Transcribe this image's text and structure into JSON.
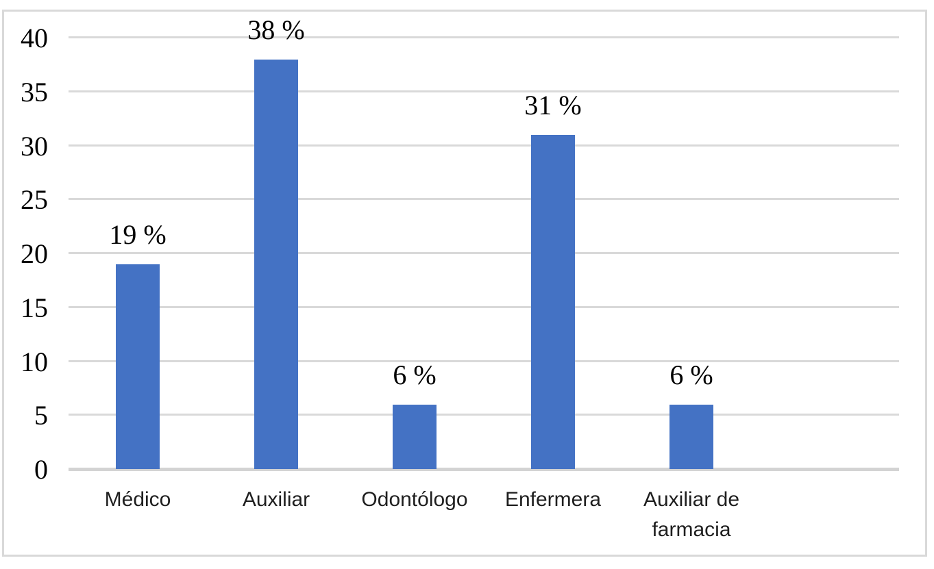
{
  "chart_data": {
    "type": "bar",
    "title": "",
    "xlabel": "",
    "ylabel": "",
    "categories": [
      "Médico",
      "Auxiliar",
      "Odontólogo",
      "Enfermera",
      "Auxiliar de farmacia"
    ],
    "values": [
      19,
      38,
      6,
      31,
      6
    ],
    "data_labels": [
      "19 %",
      "38 %",
      "6 %",
      "31 %",
      "6 %"
    ],
    "y_ticks": [
      0,
      5,
      10,
      15,
      20,
      25,
      30,
      35,
      40
    ],
    "y_tick_labels": [
      "0",
      "5",
      "10",
      "15",
      "20",
      "25",
      "30",
      "35",
      "40"
    ],
    "ylim": [
      0,
      40
    ],
    "grid": "horizontal",
    "legend_position": "none",
    "empty_trailing_slots": 1,
    "colors": {
      "bar": "#4472C4",
      "gridline": "#D9D9D9",
      "axis_line": "#D3D3D3",
      "frame_border": "#D9D9D9",
      "tick_text": "#000000",
      "category_text": "#1f1f1f",
      "background": "#ffffff"
    }
  }
}
